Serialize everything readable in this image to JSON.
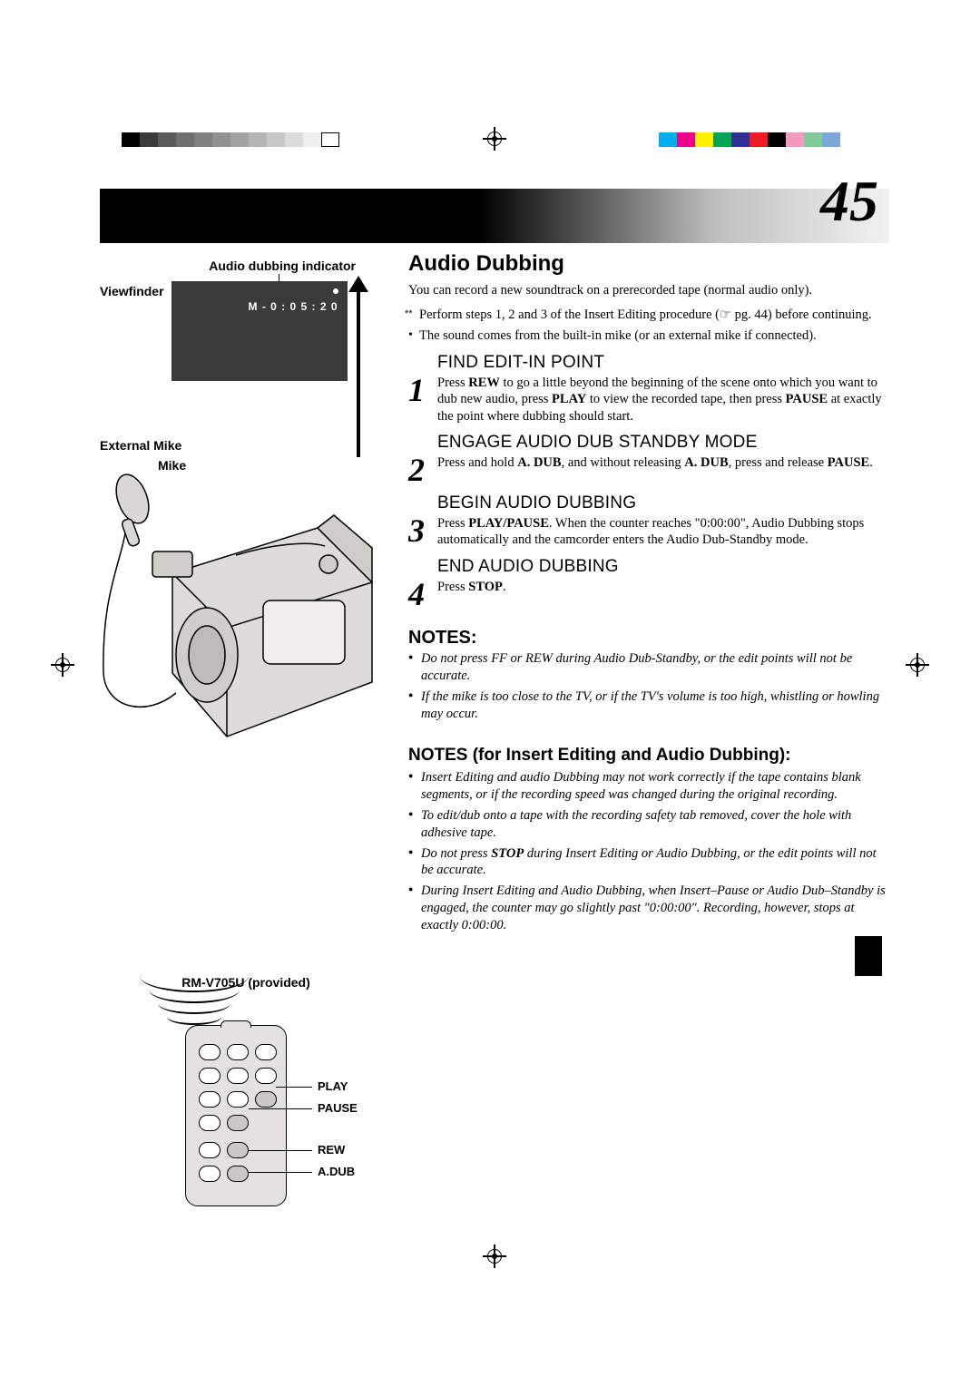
{
  "page_number": "45",
  "colorbar_left": [
    "#000000",
    "#3b3b3b",
    "#5a5a5a",
    "#6f6f6f",
    "#808080",
    "#919191",
    "#a3a3a3",
    "#b5b5b5",
    "#c8c8c8",
    "#dcdcdc",
    "#f0f0f0",
    "#ffffff"
  ],
  "colorbar_right": [
    "#00aeef",
    "#ec008c",
    "#fff200",
    "#00a651",
    "#2e3192",
    "#ed1c24",
    "#000000",
    "#f49ac1",
    "#82ca9c",
    "#7da7d9"
  ],
  "left": {
    "audio_dubbing_indicator": "Audio dubbing indicator",
    "viewfinder_label": "Viewfinder",
    "viewfinder_text": "M - 0 : 0 5 : 2 0",
    "external_mike": "External Mike",
    "mike": "Mike",
    "remote_buttons": {
      "play": "PLAY",
      "pause": "PAUSE",
      "rew": "REW",
      "adub": "A.DUB"
    },
    "remote_caption": "RM-V705U (provided)"
  },
  "right": {
    "title": "Audio Dubbing",
    "intro": "You can record a new soundtrack on a prerecorded tape (normal audio only).",
    "pre1": "Perform steps 1, 2 and 3 of the Insert Editing procedure (☞ pg. 44) before continuing.",
    "pre2": "The sound comes from the built-in mike (or an external mike if connected).",
    "steps": [
      {
        "h": "FIND EDIT-IN POINT",
        "p": "Press <b>REW</b> to go a little beyond the beginning of the scene onto which you want to dub new audio, press <b>PLAY</b> to view the recorded tape, then press <b>PAUSE</b> at exactly the point where dubbing should start."
      },
      {
        "h": "ENGAGE AUDIO DUB STANDBY MODE",
        "p": "Press and hold <b>A. DUB</b>, and without releasing <b>A. DUB</b>, press and release <b>PAUSE</b>."
      },
      {
        "h": "BEGIN AUDIO DUBBING",
        "p": "Press <b>PLAY/PAUSE</b>. When the counter reaches \"0:00:00\", Audio Dubbing stops automatically and the camcorder enters the Audio Dub-Standby mode."
      },
      {
        "h": "END AUDIO DUBBING",
        "p": "Press <b>STOP</b>."
      }
    ],
    "notes_h": "NOTES:",
    "notes": [
      "Do not press FF or REW during Audio Dub-Standby, or the edit points will not be accurate.",
      "If the mike is too close to the TV, or if the TV's volume is too high, whistling or howling may occur."
    ],
    "notes2_h": "NOTES (for Insert Editing and Audio Dubbing):",
    "notes2": [
      "Insert Editing and audio Dubbing may not work correctly if the tape contains blank segments, or if the recording speed was changed during the original recording.",
      "To edit/dub onto a tape with the recording safety tab removed, cover the hole with adhesive tape.",
      "Do not press <b>STOP</b> during Insert Editing or Audio Dubbing, or the edit points will not be accurate.",
      "During Insert Editing and Audio Dubbing, when Insert–Pause or Audio Dub–Standby is engaged, the counter may go slightly past \"0:00:00\". Recording, however, stops at exactly 0:00:00."
    ]
  }
}
